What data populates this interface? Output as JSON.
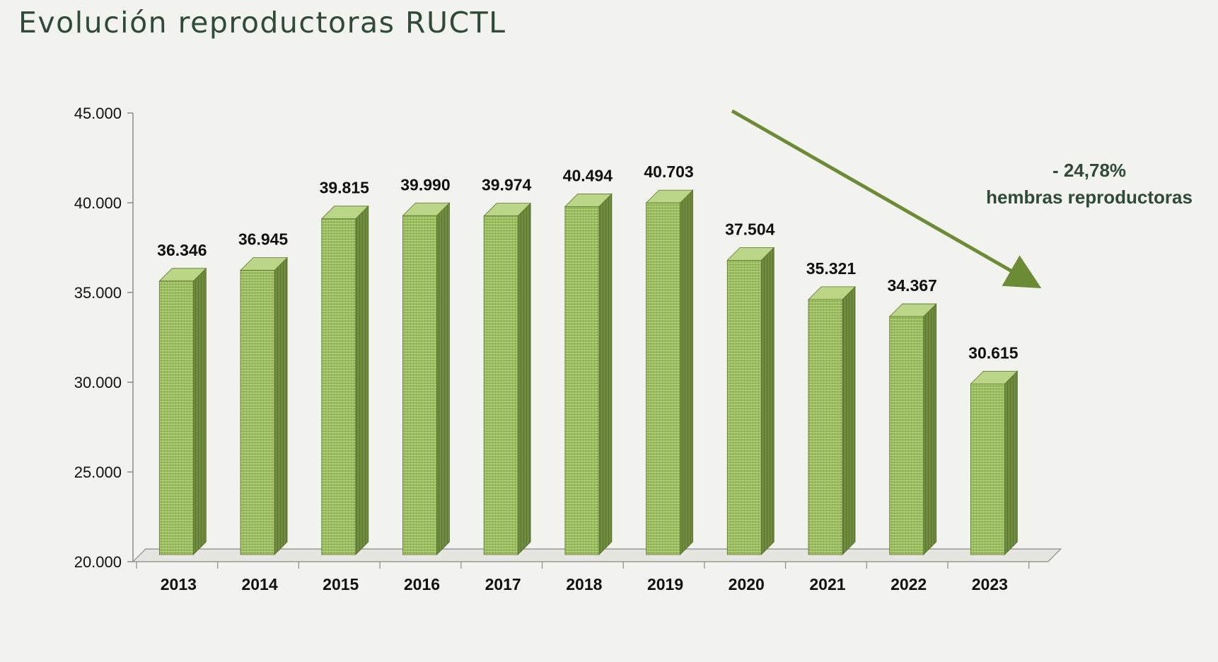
{
  "page": {
    "title": "Evolución reproductoras RUCTL"
  },
  "annotation": {
    "line1": "- 24,78%",
    "line2": "hembras reproductoras"
  },
  "colors": {
    "background": "#f2f2ee",
    "bar_front": "#9bbd5f",
    "bar_side": "#6f8d3a",
    "bar_top": "#bcd688",
    "arrow": "#6b8b35",
    "title": "#2f4a36"
  },
  "chart_data": {
    "type": "bar",
    "title": "Evolución reproductoras RUCTL",
    "xlabel": "",
    "ylabel": "",
    "categories": [
      "2013",
      "2014",
      "2015",
      "2016",
      "2017",
      "2018",
      "2019",
      "2020",
      "2021",
      "2022",
      "2023"
    ],
    "values": [
      36346,
      36945,
      39815,
      39990,
      39974,
      40494,
      40703,
      37504,
      35321,
      34367,
      30615
    ],
    "value_labels": [
      "36.346",
      "36.945",
      "39.815",
      "39.990",
      "39.974",
      "40.494",
      "40.703",
      "37.504",
      "35.321",
      "34.367",
      "30.615"
    ],
    "ylim": [
      20000,
      45000
    ],
    "yticks": [
      20000,
      25000,
      30000,
      35000,
      40000,
      45000
    ],
    "ytick_labels": [
      "20.000",
      "25.000",
      "30.000",
      "35.000",
      "40.000",
      "45.000"
    ],
    "grid": false,
    "style": "3d-column"
  }
}
